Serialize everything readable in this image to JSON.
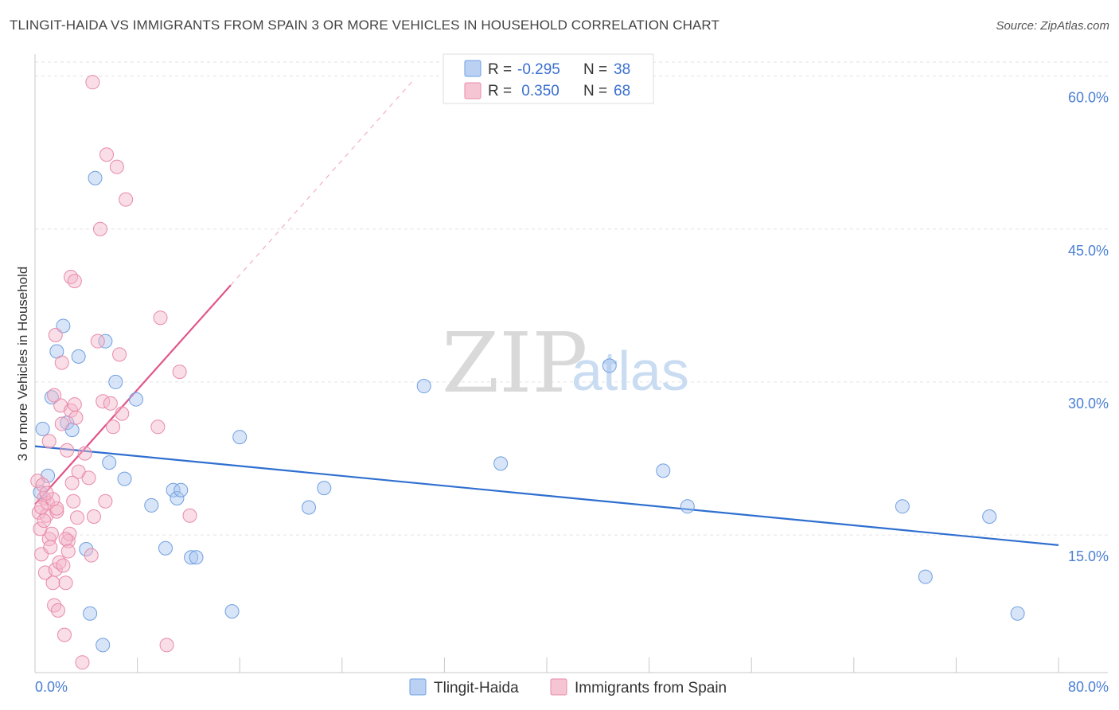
{
  "header": {
    "title": "TLINGIT-HAIDA VS IMMIGRANTS FROM SPAIN 3 OR MORE VEHICLES IN HOUSEHOLD CORRELATION CHART",
    "source": "Source: ZipAtlas.com"
  },
  "watermark": {
    "zip": "ZIP",
    "atlas": "atlas"
  },
  "stats": [
    {
      "r_label": "R =",
      "r_value": "-0.295",
      "n_label": "N =",
      "n_value": "38",
      "color": "#a9c6f0"
    },
    {
      "r_label": "R =",
      "r_value": " 0.350",
      "n_label": "N =",
      "n_value": "68",
      "color": "#f4b6c9"
    }
  ],
  "chart_data": {
    "type": "scatter",
    "title": "TLINGIT-HAIDA VS IMMIGRANTS FROM SPAIN 3 OR MORE VEHICLES IN HOUSEHOLD CORRELATION CHART",
    "xlabel": "",
    "ylabel": "3 or more Vehicles in Household",
    "xlim": [
      0,
      80
    ],
    "ylim": [
      1.5,
      62
    ],
    "x_tick_labels": [
      "0.0%",
      "80.0%"
    ],
    "y_ticks": [
      15,
      30,
      45,
      60
    ],
    "y_tick_labels": [
      "15.0%",
      "30.0%",
      "45.0%",
      "60.0%"
    ],
    "grid": true,
    "series": [
      {
        "name": "Tlingit-Haida",
        "color": "#a9c6f0",
        "stroke": "#6f9fe0",
        "trend_color": "#2f6fd0",
        "trend": {
          "x0": 0,
          "y0": 23.7,
          "x1": 80,
          "y1": 14.0
        },
        "points": [
          [
            0.4,
            19.2
          ],
          [
            0.6,
            25.4
          ],
          [
            1.0,
            20.8
          ],
          [
            1.3,
            28.5
          ],
          [
            1.7,
            33.0
          ],
          [
            2.2,
            35.5
          ],
          [
            2.5,
            26.0
          ],
          [
            2.9,
            25.3
          ],
          [
            3.4,
            32.5
          ],
          [
            4.0,
            13.6
          ],
          [
            4.3,
            7.3
          ],
          [
            4.7,
            50.0
          ],
          [
            5.3,
            4.2
          ],
          [
            5.5,
            34.0
          ],
          [
            5.8,
            22.1
          ],
          [
            6.3,
            30.0
          ],
          [
            7.0,
            20.5
          ],
          [
            7.9,
            28.3
          ],
          [
            9.1,
            17.9
          ],
          [
            10.2,
            13.7
          ],
          [
            10.8,
            19.4
          ],
          [
            11.1,
            18.6
          ],
          [
            11.4,
            19.4
          ],
          [
            12.2,
            12.8
          ],
          [
            12.6,
            12.8
          ],
          [
            15.4,
            7.5
          ],
          [
            16.0,
            24.6
          ],
          [
            21.4,
            17.7
          ],
          [
            22.6,
            19.6
          ],
          [
            30.4,
            29.6
          ],
          [
            36.4,
            22.0
          ],
          [
            44.9,
            31.6
          ],
          [
            49.1,
            21.3
          ],
          [
            51.0,
            17.8
          ],
          [
            67.8,
            17.8
          ],
          [
            69.6,
            10.9
          ],
          [
            74.6,
            16.8
          ],
          [
            76.8,
            7.3
          ]
        ]
      },
      {
        "name": "Immigrants from Spain",
        "color": "#f4b6c9",
        "stroke": "#e88aa8",
        "trend_color": "#e0558a",
        "trend": {
          "x0": 0,
          "y0": 18.0,
          "x1": 15.3,
          "y1": 39.5
        },
        "trend_dashed": {
          "x0": 15.3,
          "y0": 39.5,
          "x1": 29.5,
          "y1": 59.5
        },
        "points": [
          [
            0.2,
            20.3
          ],
          [
            0.3,
            17.2
          ],
          [
            0.4,
            15.6
          ],
          [
            0.5,
            13.1
          ],
          [
            0.6,
            19.9
          ],
          [
            0.7,
            18.6
          ],
          [
            0.8,
            11.3
          ],
          [
            0.9,
            16.9
          ],
          [
            1.0,
            18.1
          ],
          [
            1.1,
            14.6
          ],
          [
            1.2,
            13.8
          ],
          [
            1.3,
            15.1
          ],
          [
            1.4,
            10.3
          ],
          [
            1.5,
            8.1
          ],
          [
            1.6,
            11.6
          ],
          [
            1.7,
            17.3
          ],
          [
            1.8,
            7.6
          ],
          [
            1.9,
            12.3
          ],
          [
            2.0,
            27.7
          ],
          [
            2.1,
            25.9
          ],
          [
            2.2,
            12.0
          ],
          [
            2.3,
            5.2
          ],
          [
            2.4,
            10.3
          ],
          [
            2.5,
            23.3
          ],
          [
            2.6,
            14.4
          ],
          [
            2.7,
            15.1
          ],
          [
            2.8,
            27.2
          ],
          [
            2.9,
            20.1
          ],
          [
            3.0,
            18.3
          ],
          [
            3.1,
            27.8
          ],
          [
            3.2,
            26.5
          ],
          [
            3.3,
            16.7
          ],
          [
            3.4,
            21.2
          ],
          [
            3.7,
            2.5
          ],
          [
            3.9,
            23.0
          ],
          [
            4.2,
            20.6
          ],
          [
            4.4,
            13.0
          ],
          [
            4.6,
            16.8
          ],
          [
            4.9,
            34.0
          ],
          [
            5.1,
            45.0
          ],
          [
            5.3,
            28.1
          ],
          [
            5.5,
            18.3
          ],
          [
            5.6,
            52.3
          ],
          [
            5.9,
            27.9
          ],
          [
            6.1,
            25.6
          ],
          [
            6.4,
            51.1
          ],
          [
            6.6,
            32.7
          ],
          [
            6.8,
            26.9
          ],
          [
            7.1,
            47.9
          ],
          [
            9.6,
            25.6
          ],
          [
            9.8,
            36.3
          ],
          [
            10.3,
            4.2
          ],
          [
            11.3,
            31.0
          ],
          [
            12.1,
            16.9
          ],
          [
            4.5,
            59.4
          ],
          [
            2.8,
            40.3
          ],
          [
            3.1,
            39.9
          ],
          [
            1.6,
            34.6
          ],
          [
            2.1,
            31.9
          ],
          [
            1.5,
            28.7
          ],
          [
            1.1,
            24.2
          ],
          [
            1.7,
            17.6
          ],
          [
            1.4,
            18.5
          ],
          [
            0.9,
            19.1
          ],
          [
            2.4,
            14.6
          ],
          [
            2.6,
            13.4
          ],
          [
            0.5,
            17.7
          ],
          [
            0.7,
            16.4
          ]
        ]
      }
    ]
  },
  "legend": {
    "items": [
      {
        "label": "Tlingit-Haida",
        "color": "#a9c6f0"
      },
      {
        "label": "Immigrants from Spain",
        "color": "#f4b6c9"
      }
    ]
  }
}
